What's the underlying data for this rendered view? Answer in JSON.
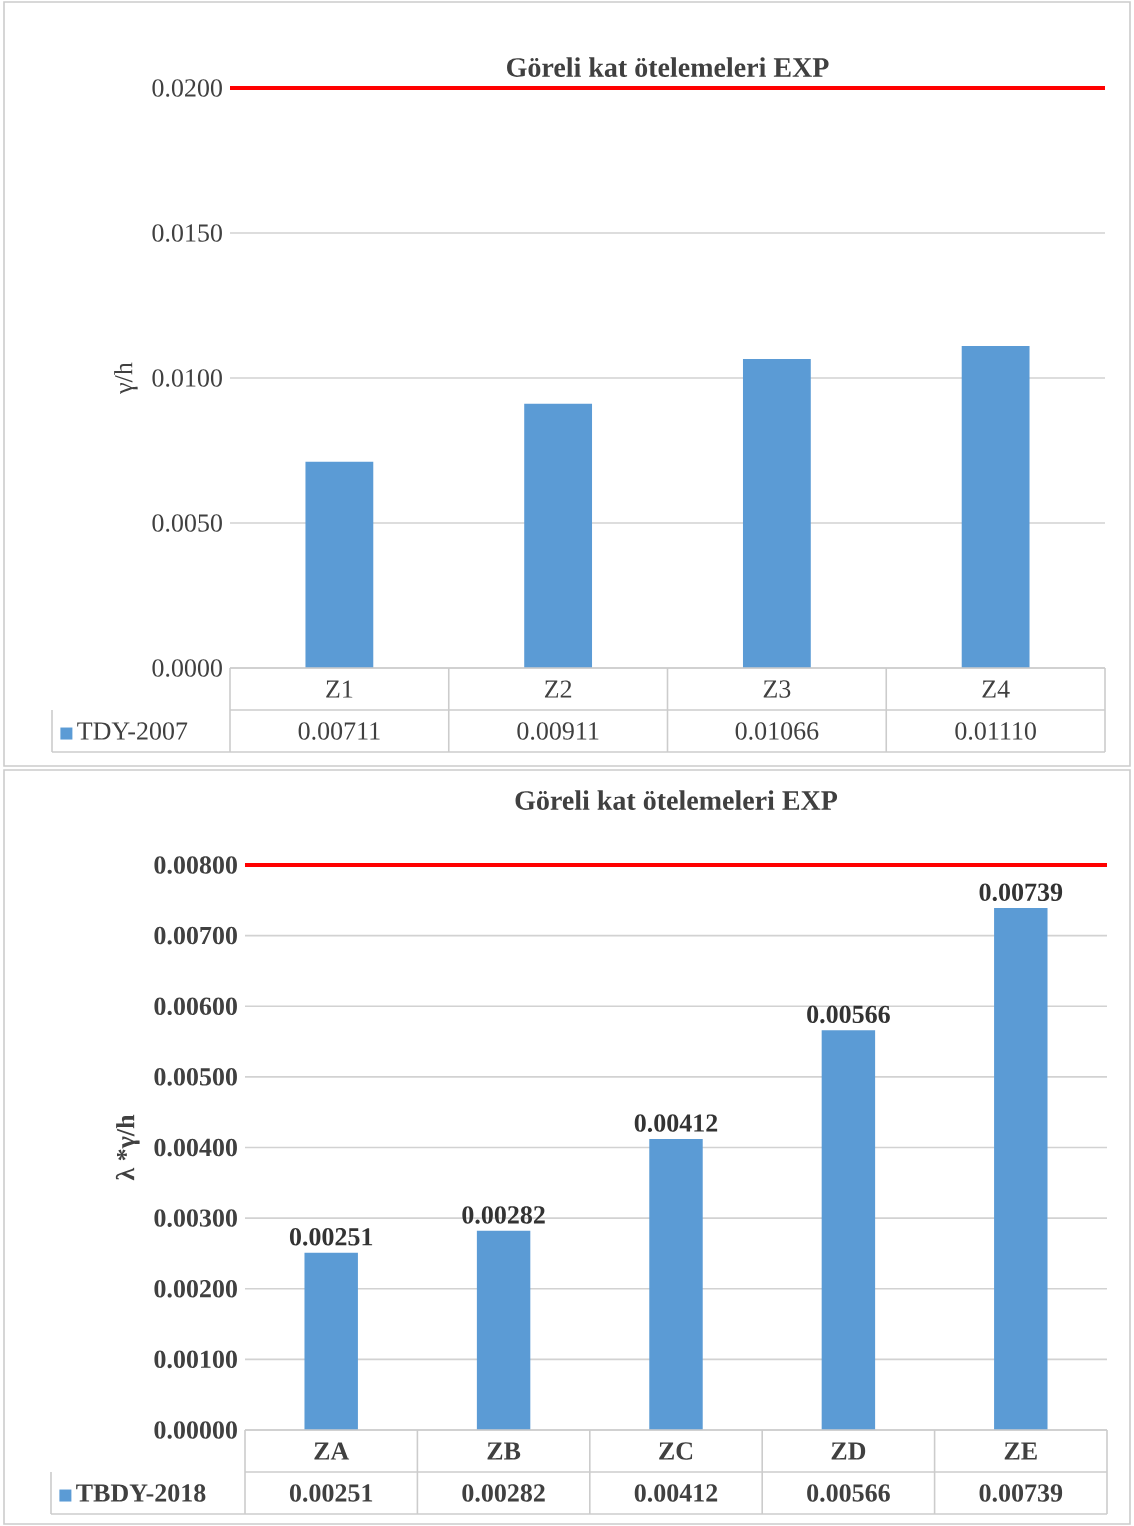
{
  "chart_data": [
    {
      "type": "bar",
      "title": "Göreli kat ötelemeleri  EXP",
      "ylabel": "γ/h",
      "categories": [
        "Z1",
        "Z2",
        "Z3",
        "Z4"
      ],
      "series": [
        {
          "name": "TDY-2007",
          "color": "#5b9bd5",
          "values": [
            0.00711,
            0.00911,
            0.01066,
            0.0111
          ],
          "value_labels": [
            "0.00711",
            "0.00911",
            "0.01066",
            "0.01110"
          ]
        }
      ],
      "ylim": [
        0,
        0.02
      ],
      "yticks": [
        {
          "value": 0,
          "label": "0.0000"
        },
        {
          "value": 0.005,
          "label": "0.0050"
        },
        {
          "value": 0.01,
          "label": "0.0100"
        },
        {
          "value": 0.015,
          "label": "0.0150"
        },
        {
          "value": 0.02,
          "label": "0.0200"
        }
      ],
      "grid": "y",
      "legend": "bottom",
      "ref_lines": [
        {
          "axis": "y",
          "value": 0.02,
          "color": "#ff0000"
        }
      ]
    },
    {
      "type": "bar",
      "title": "Göreli kat ötelemeleri  EXP",
      "ylabel": "λ *γ/h",
      "categories": [
        "ZA",
        "ZB",
        "ZC",
        "ZD",
        "ZE"
      ],
      "series": [
        {
          "name": "TBDY-2018",
          "color": "#5b9bd5",
          "values": [
            0.00251,
            0.00282,
            0.00412,
            0.00566,
            0.00739
          ],
          "value_labels": [
            "0.00251",
            "0.00282",
            "0.00412",
            "0.00566",
            "0.00739"
          ]
        }
      ],
      "ylim": [
        0,
        0.008
      ],
      "yticks": [
        {
          "value": 0,
          "label": "0.00000"
        },
        {
          "value": 0.001,
          "label": "0.00100"
        },
        {
          "value": 0.002,
          "label": "0.00200"
        },
        {
          "value": 0.003,
          "label": "0.00300"
        },
        {
          "value": 0.004,
          "label": "0.00400"
        },
        {
          "value": 0.005,
          "label": "0.00500"
        },
        {
          "value": 0.006,
          "label": "0.00600"
        },
        {
          "value": 0.007,
          "label": "0.00700"
        },
        {
          "value": 0.008,
          "label": "0.00800"
        }
      ],
      "grid": "y",
      "legend": "bottom",
      "data_labels": true,
      "ref_lines": [
        {
          "axis": "y",
          "value": 0.008,
          "color": "#ff0000"
        }
      ]
    }
  ]
}
